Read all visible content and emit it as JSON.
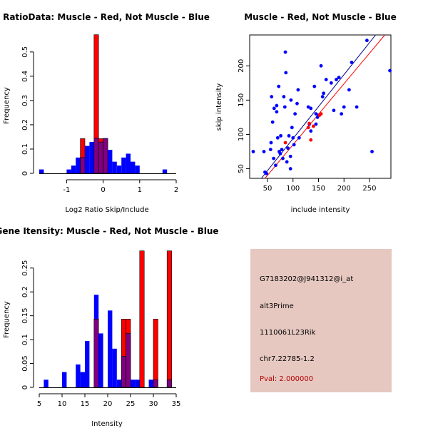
{
  "chart_data": [
    {
      "type": "histogram",
      "title": "RatioData: Muscle - Red, Not Muscle - Blue",
      "xlabel": "Log2 Ratio Skip/Include",
      "ylabel": "Frequency",
      "xlim": [
        -1.75,
        2.0
      ],
      "ylim": [
        0,
        0.57
      ],
      "xticks": [
        -1,
        0,
        1,
        2
      ],
      "yticks": [
        0.0,
        0.1,
        0.2,
        0.3,
        0.4,
        0.5
      ],
      "bin_edges": [
        -1.75,
        -1.625,
        -1.5,
        -1.375,
        -1.25,
        -1.125,
        -1.0,
        -0.875,
        -0.75,
        -0.625,
        -0.5,
        -0.375,
        -0.25,
        -0.125,
        0.0,
        0.125,
        0.25,
        0.375,
        0.5,
        0.625,
        0.75,
        0.875,
        1.0,
        1.125,
        1.25,
        1.375,
        1.5,
        1.625,
        1.75,
        1.875
      ],
      "series": [
        {
          "name": "Muscle",
          "color": "#ff0000",
          "values": [
            0,
            0,
            0,
            0,
            0,
            0,
            0,
            0,
            0,
            0.143,
            0.0,
            0.0,
            0.571,
            0.143,
            0.143,
            0.0,
            0,
            0,
            0,
            0,
            0,
            0,
            0,
            0,
            0,
            0,
            0,
            0,
            0
          ]
        },
        {
          "name": "Not Muscle",
          "color": "#0000ff",
          "values": [
            0.016,
            0,
            0,
            0,
            0,
            0,
            0.016,
            0.032,
            0.065,
            0.065,
            0.113,
            0.129,
            0.145,
            0.129,
            0.145,
            0.097,
            0.048,
            0.032,
            0.065,
            0.081,
            0.048,
            0.032,
            0,
            0,
            0,
            0,
            0,
            0.016,
            0
          ]
        }
      ]
    },
    {
      "type": "scatter",
      "title": "Muscle - Red, Not Muscle - Blue",
      "xlabel": "include intensity",
      "ylabel": "skip intensity",
      "xlim": [
        15,
        292
      ],
      "ylim": [
        36,
        245
      ],
      "xticks": [
        50,
        100,
        150,
        200,
        250
      ],
      "yticks": [
        50,
        100,
        150,
        200
      ],
      "series": [
        {
          "name": "Not Muscle",
          "color": "#0000ff",
          "points": [
            [
              22,
              75
            ],
            [
              43,
              75
            ],
            [
              45,
              45
            ],
            [
              48,
              43
            ],
            [
              56,
              78
            ],
            [
              57,
              88
            ],
            [
              58,
              155
            ],
            [
              60,
              118
            ],
            [
              62,
              65
            ],
            [
              63,
              138
            ],
            [
              66,
              55
            ],
            [
              68,
              142
            ],
            [
              68,
              133
            ],
            [
              70,
              95
            ],
            [
              72,
              170
            ],
            [
              73,
              75
            ],
            [
              75,
              72
            ],
            [
              76,
              98
            ],
            [
              78,
              78
            ],
            [
              80,
              65
            ],
            [
              82,
              155
            ],
            [
              84,
              140
            ],
            [
              85,
              220
            ],
            [
              86,
              190
            ],
            [
              88,
              60
            ],
            [
              90,
              80
            ],
            [
              92,
              98
            ],
            [
              95,
              50
            ],
            [
              95,
              68
            ],
            [
              96,
              150
            ],
            [
              98,
              110
            ],
            [
              100,
              95
            ],
            [
              102,
              85
            ],
            [
              104,
              130
            ],
            [
              108,
              145
            ],
            [
              110,
              165
            ],
            [
              112,
              95
            ],
            [
              130,
              140
            ],
            [
              132,
              115
            ],
            [
              135,
              105
            ],
            [
              135,
              138
            ],
            [
              142,
              170
            ],
            [
              145,
              130
            ],
            [
              145,
              115
            ],
            [
              148,
              125
            ],
            [
              150,
              128
            ],
            [
              155,
              200
            ],
            [
              158,
              155
            ],
            [
              160,
              160
            ],
            [
              165,
              180
            ],
            [
              175,
              175
            ],
            [
              180,
              135
            ],
            [
              185,
              180
            ],
            [
              190,
              183
            ],
            [
              195,
              130
            ],
            [
              200,
              140
            ],
            [
              210,
              165
            ],
            [
              215,
              205
            ],
            [
              225,
              140
            ],
            [
              245,
              237
            ],
            [
              255,
              75
            ],
            [
              290,
              193
            ]
          ]
        },
        {
          "name": "Muscle",
          "color": "#ff0000",
          "points": [
            [
              85,
              88
            ],
            [
              130,
              110
            ],
            [
              132,
              116
            ],
            [
              135,
              92
            ],
            [
              140,
              112
            ],
            [
              152,
              128
            ],
            [
              155,
              130
            ]
          ]
        }
      ],
      "fit_lines": [
        {
          "name": "Muscle",
          "color": "#ff0000",
          "from": [
            45,
            36
          ],
          "to": [
            280,
            245
          ]
        },
        {
          "name": "Not Muscle",
          "color": "#00008b",
          "from": [
            38,
            36
          ],
          "to": [
            262,
            245
          ]
        }
      ]
    },
    {
      "type": "histogram",
      "title": "Gene Itensity: Muscle - Red, Not Muscle - Blue",
      "xlabel": "Intensity",
      "ylabel": "Frequency",
      "xlim": [
        5,
        35
      ],
      "ylim": [
        0,
        0.29
      ],
      "xticks": [
        5,
        10,
        15,
        20,
        25,
        30,
        35
      ],
      "yticks": [
        0.0,
        0.05,
        0.1,
        0.15,
        0.2,
        0.25
      ],
      "bin_edges": [
        6,
        7,
        8,
        9,
        10,
        11,
        12,
        13,
        14,
        15,
        16,
        17,
        18,
        19,
        20,
        21,
        22,
        23,
        24,
        25,
        26,
        27,
        28,
        29,
        30,
        31,
        32,
        33,
        34
      ],
      "series": [
        {
          "name": "Muscle",
          "color": "#ff0000",
          "values": [
            0,
            0,
            0,
            0,
            0,
            0,
            0,
            0,
            0,
            0,
            0,
            0.143,
            0,
            0,
            0,
            0,
            0,
            0.143,
            0.143,
            0,
            0,
            0.286,
            0,
            0,
            0.143,
            0,
            0,
            0.286
          ]
        },
        {
          "name": "Not Muscle",
          "color": "#0000ff",
          "values": [
            0.016,
            0,
            0,
            0,
            0.032,
            0,
            0,
            0.048,
            0.032,
            0.097,
            0,
            0.194,
            0.113,
            0,
            0.161,
            0.081,
            0.016,
            0.065,
            0.113,
            0.016,
            0.016,
            0,
            0,
            0.016,
            0.016,
            0,
            0,
            0.016
          ]
        }
      ]
    }
  ],
  "info_panel": {
    "probe_id": "G7183202@J941312@i_at",
    "event_type": "alt3Prime",
    "gene": "1110061L23Rik",
    "location": "chr7.22785-1.2",
    "pval": "Pval: 2.000000",
    "background": "#e6c8c0",
    "pval_color": "#b00000"
  },
  "colors": {
    "muscle": "#ff0000",
    "not_muscle": "#0000ff",
    "overlap": "#800080",
    "axis": "#000000"
  }
}
